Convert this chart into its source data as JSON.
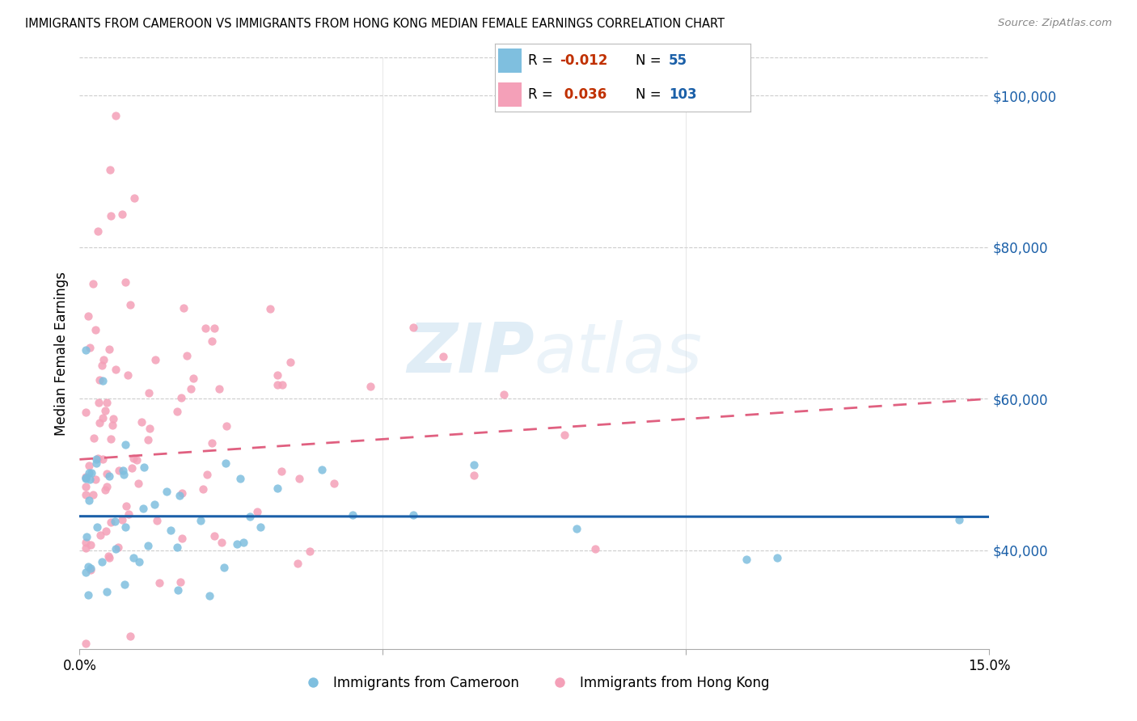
{
  "title": "IMMIGRANTS FROM CAMEROON VS IMMIGRANTS FROM HONG KONG MEDIAN FEMALE EARNINGS CORRELATION CHART",
  "source": "Source: ZipAtlas.com",
  "ylabel": "Median Female Earnings",
  "y_ticks": [
    40000,
    60000,
    80000,
    100000
  ],
  "y_tick_labels": [
    "$40,000",
    "$60,000",
    "$80,000",
    "$100,000"
  ],
  "x_range": [
    0.0,
    0.15
  ],
  "y_range": [
    27000,
    105000
  ],
  "color_cameroon": "#7fbfdf",
  "color_hk": "#f4a0b8",
  "trend_color_cameroon": "#1a5fa8",
  "trend_color_hk": "#e06080",
  "watermark_zip": "ZIP",
  "watermark_atlas": "atlas",
  "r_cam": "-0.012",
  "n_cam": "55",
  "r_hk": "0.036",
  "n_hk": "103",
  "legend_text_color": "#1a5fa8",
  "legend_r_color": "#c03000",
  "grid_color": "#cccccc",
  "tick_color": "#1a5fa8"
}
